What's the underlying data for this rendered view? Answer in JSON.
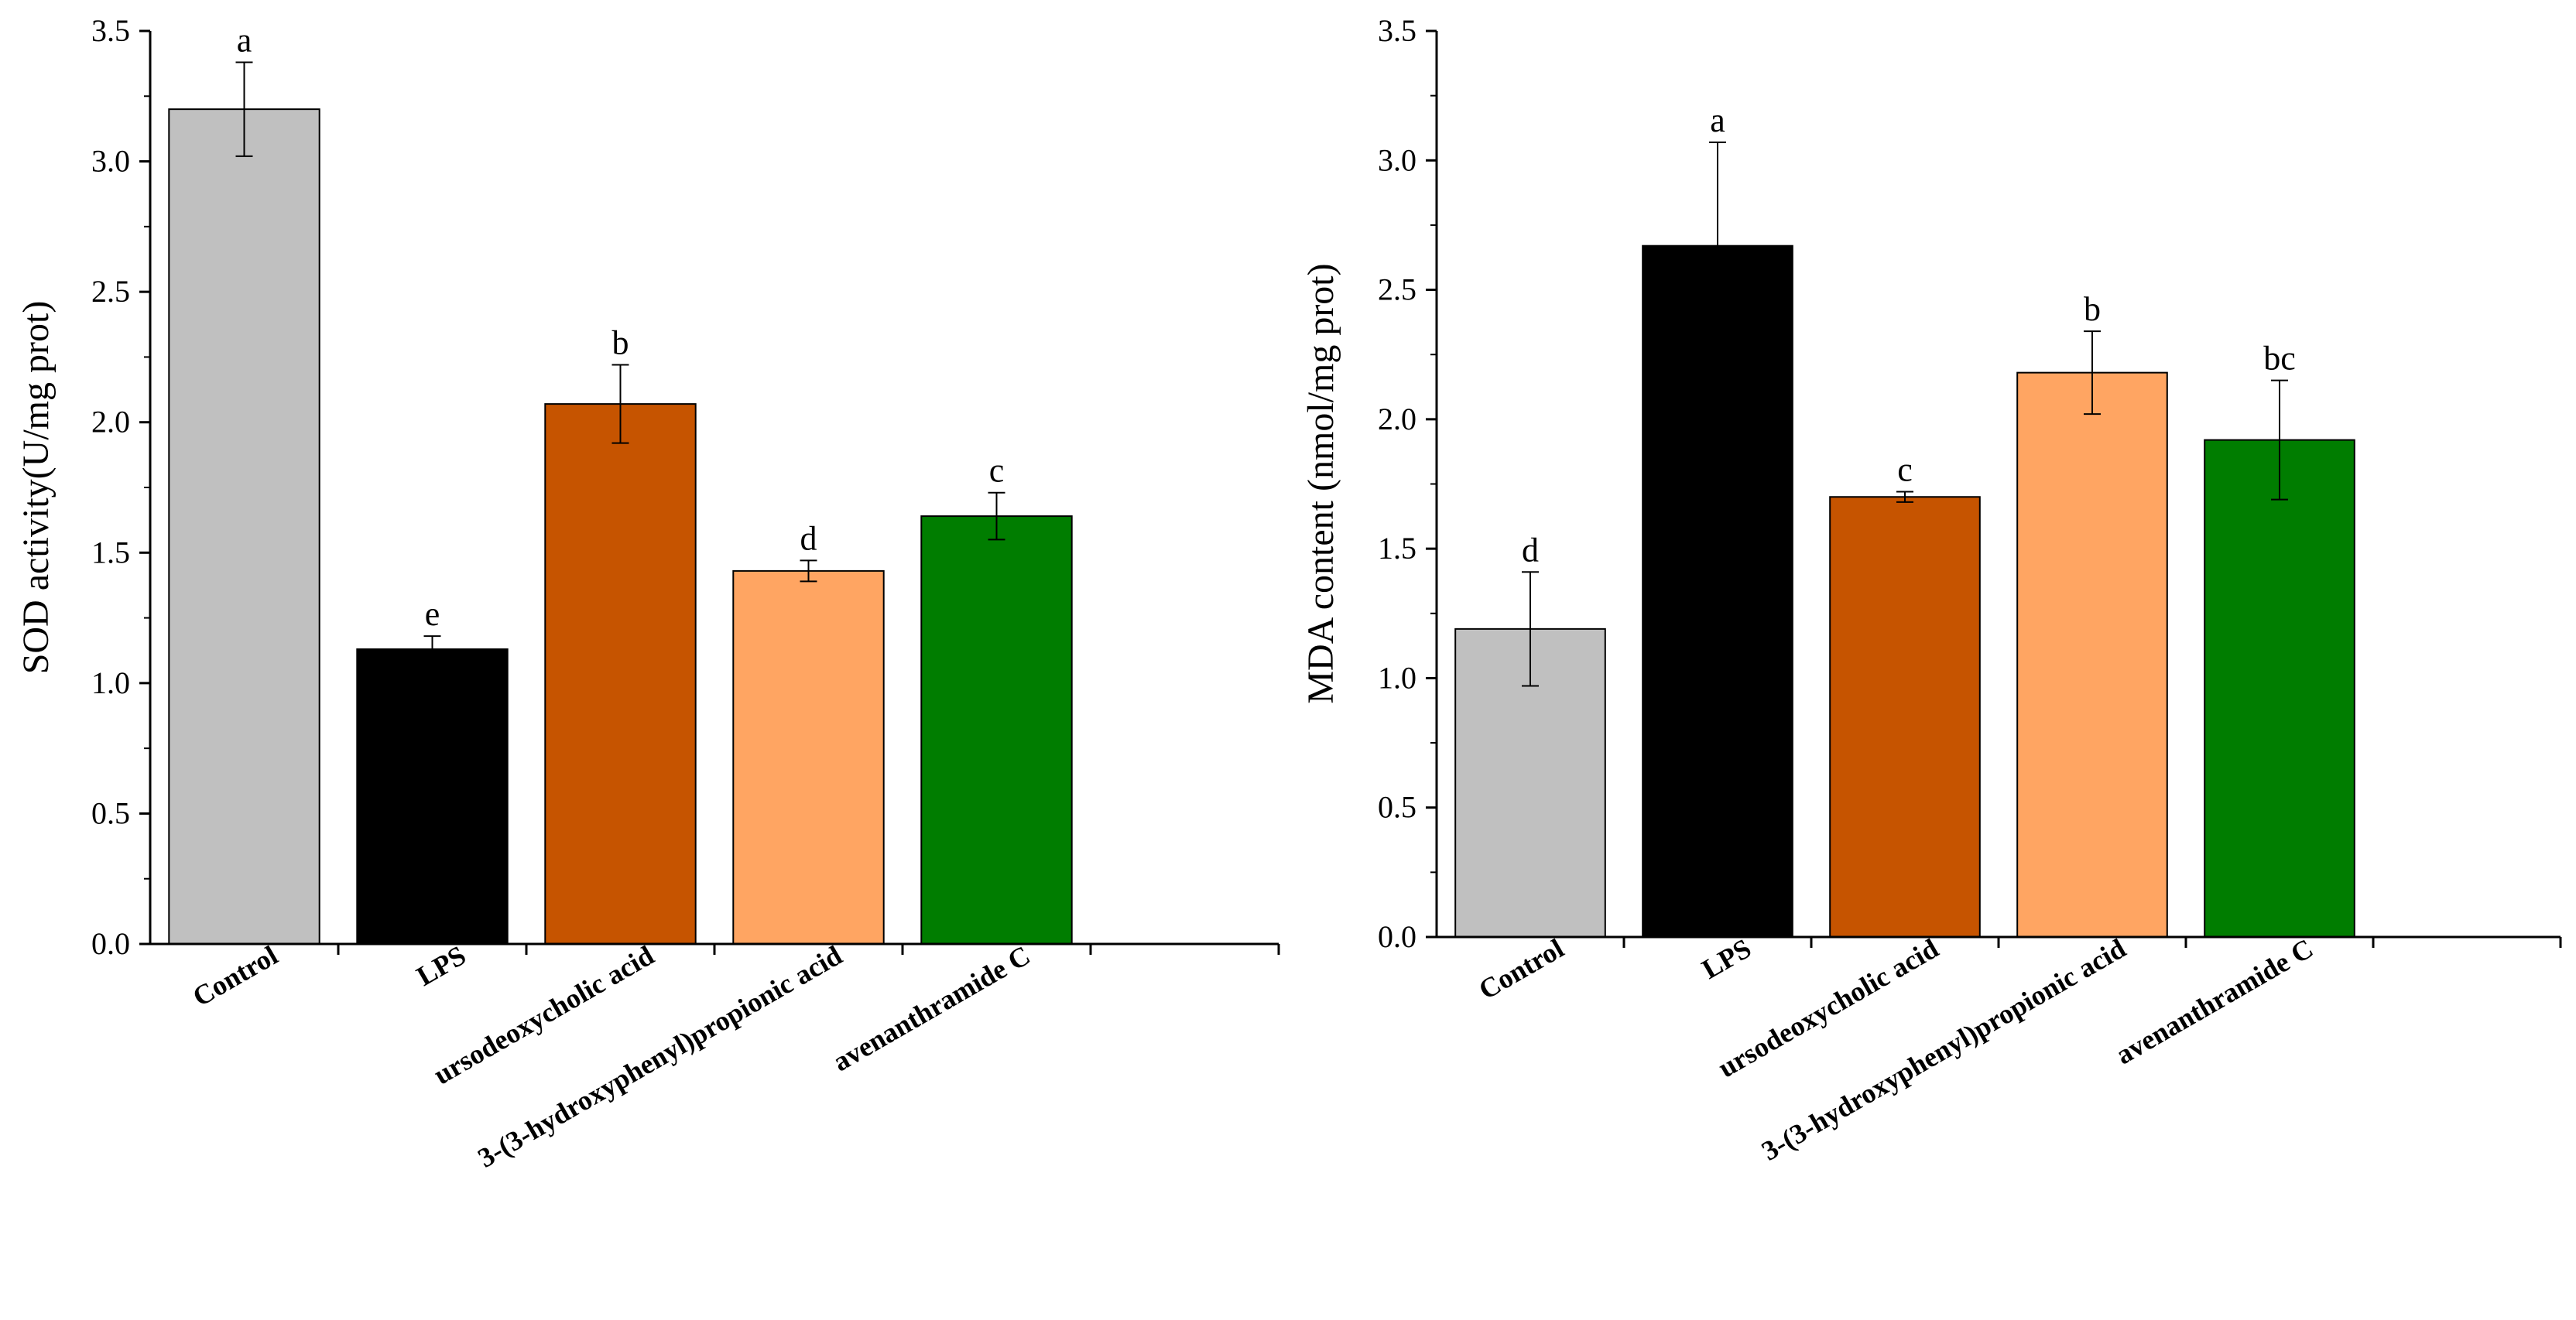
{
  "chart_data": [
    {
      "type": "bar",
      "title": "",
      "xlabel": "",
      "ylabel": "SOD activity(U/mg prot)",
      "ylim": [
        0,
        3.5
      ],
      "yticks": [
        "0.0",
        "0.5",
        "1.0",
        "1.5",
        "2.0",
        "2.5",
        "3.0",
        "3.5"
      ],
      "categories": [
        "Control",
        "LPS",
        "ursodeoxycholic acid",
        "3-(3-hydroxyphenyl)propionic acid",
        "avenanthramide C"
      ],
      "values": [
        3.2,
        1.13,
        2.07,
        1.43,
        1.64
      ],
      "errors": [
        0.18,
        0.05,
        0.15,
        0.04,
        0.09
      ],
      "significance": [
        "a",
        "e",
        "b",
        "d",
        "c"
      ],
      "colors": [
        "#c0c0c0",
        "#000000",
        "#c65400",
        "#ffa562",
        "#007d00"
      ],
      "slots": 6
    },
    {
      "type": "bar",
      "title": "",
      "xlabel": "",
      "ylabel": "MDA content (nmol/mg prot)",
      "ylim": [
        0,
        3.5
      ],
      "yticks": [
        "0.0",
        "0.5",
        "1.0",
        "1.5",
        "2.0",
        "2.5",
        "3.0",
        "3.5"
      ],
      "categories": [
        "Control",
        "LPS",
        "ursodeoxycholic acid",
        "3-(3-hydroxyphenyl)propionic acid",
        "avenanthramide C"
      ],
      "values": [
        1.19,
        2.67,
        1.7,
        2.18,
        1.92
      ],
      "errors": [
        0.22,
        0.4,
        0.02,
        0.16,
        0.23
      ],
      "significance": [
        "d",
        "a",
        "c",
        "b",
        "bc"
      ],
      "colors": [
        "#c0c0c0",
        "#000000",
        "#c65400",
        "#ffa562",
        "#007d00"
      ],
      "slots": 6
    }
  ]
}
